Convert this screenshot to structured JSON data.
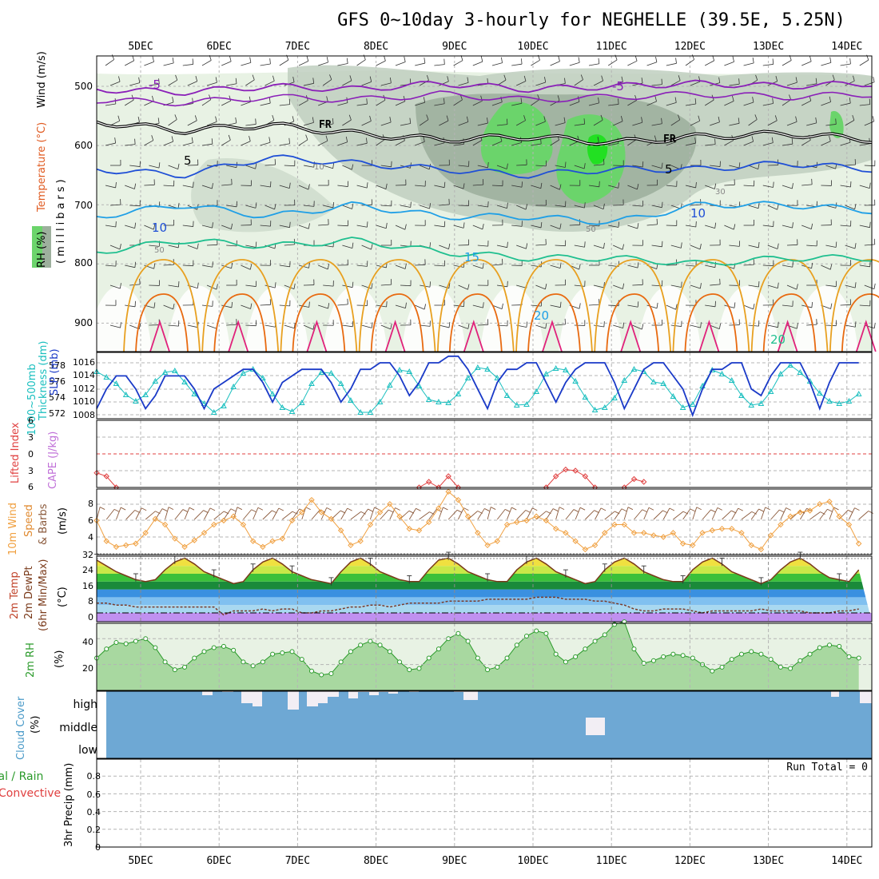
{
  "title": "GFS 0~10day 3-hourly for NEGHELLE (39.5E, 5.25N)",
  "dates": [
    "5DEC",
    "6DEC",
    "7DEC",
    "8DEC",
    "9DEC",
    "10DEC",
    "11DEC",
    "12DEC",
    "13DEC",
    "14DEC"
  ],
  "colors": {
    "grid": "#b4b4b4",
    "rh_light": "#e8f2e4",
    "rh_mid": "#c0cfc0",
    "rh_dark": "#9db09d",
    "rh_green": "#6bd46b",
    "rh_bright": "#22e022",
    "purple": "#8a1fb8",
    "blue": "#1f4fd6",
    "sky": "#1f9fe6",
    "teal": "#1fbf8f",
    "orange": "#e8a020",
    "darkorange": "#e86a10",
    "magenta": "#e0207a",
    "thickness": "#1abfbf",
    "slp": "#1a3ac8",
    "li": "#e04040",
    "wind10": "#f0a040",
    "barb": "#8b5a3c",
    "rh2m": "#2a9a2a",
    "cloud": "#6ea8d4",
    "temp_line": "#7a3a1a"
  },
  "panel_labels": {
    "upper_rh": "RH (%)",
    "upper_temp": "Temperature (°C)",
    "upper_wind": "Wind (m/s)",
    "upper_axis": "(millibars)",
    "thick_a": "Thickness (dm)",
    "thick_b": "1000~500mb",
    "slp": "SLP (mb)",
    "li": "Lifted Index",
    "cape": "CAPE (J/kg)",
    "wind_a": "10m Wind",
    "wind_b": "Speed",
    "wind_c": "& Barbs",
    "wind_unit": "(m/s)",
    "temp_a": "2m Temp",
    "temp_b": "2m DewPt",
    "temp_c": "(6hr Min/Max)",
    "temp_unit": "(°C)",
    "rh_a": "2m RH",
    "rh_unit": "(%)",
    "cloud_a": "Cloud Cover",
    "cloud_unit": "(%)",
    "cloud_high": "high",
    "cloud_middle": "middle",
    "cloud_low": "low",
    "precip_a": "tal / Rain",
    "precip_b": "Convective",
    "precip_c": "3hr Precip (mm)",
    "run_total": "Run Total = 0"
  },
  "contour_labels": {
    "minus5_a": "-5",
    "minus5_b": "-5",
    "fr_a": "FR",
    "fr_b": "FR",
    "five_a": "5",
    "five_b": "5",
    "ten_a": "10",
    "ten_b": "10",
    "fifteen": "15",
    "twenty_a": "20",
    "twenty_b": "20",
    "rh10": "10",
    "rh30": "30",
    "rh50a": "50",
    "rh50b": "50"
  },
  "axes": {
    "pressure_ticks": [
      "500",
      "600",
      "700",
      "800",
      "900"
    ],
    "thickness_ticks": [
      "578",
      "576",
      "574",
      "572"
    ],
    "slp_ticks": [
      "1016",
      "1014",
      "1012",
      "1010",
      "1008"
    ],
    "li_ticks": [
      "6",
      "3",
      "0",
      "3",
      "6"
    ],
    "wind_ticks": [
      "8",
      "6",
      "4"
    ],
    "temp_ticks": [
      "32",
      "24",
      "16",
      "8",
      "0"
    ],
    "rh_ticks": [
      "40",
      "20"
    ],
    "precip_ticks": [
      "0.8",
      "0.6",
      "0.4",
      "0.2",
      "0"
    ]
  },
  "chart_data": [
    {
      "type": "line",
      "panel": "upper-air",
      "title": "GFS 0~10day 3-hourly for NEGHELLE (39.5E, 5.25N)",
      "ylabel": "(millibars)",
      "ylim": [
        1000,
        450
      ],
      "series": [
        {
          "name": "-5",
          "pressure": [
            505,
            510,
            500,
            505,
            495,
            505,
            500,
            495,
            500,
            495
          ]
        },
        {
          "name": "FR",
          "pressure": [
            560,
            575,
            565,
            580,
            590,
            585,
            595,
            585,
            580,
            590
          ]
        },
        {
          "name": "5",
          "pressure": [
            640,
            650,
            620,
            630,
            640,
            650,
            640,
            640,
            630,
            640
          ]
        },
        {
          "name": "10",
          "pressure": [
            720,
            700,
            720,
            700,
            720,
            720,
            730,
            700,
            700,
            710
          ]
        },
        {
          "name": "15",
          "pressure": [
            780,
            760,
            770,
            760,
            780,
            790,
            790,
            800,
            790,
            790
          ]
        }
      ]
    },
    {
      "type": "line",
      "panel": "thickness-slp",
      "ylabel": "Thickness (dm)",
      "ylim": [
        571.5,
        579
      ],
      "x_hours": [
        0,
        3,
        6,
        9,
        12,
        15,
        18,
        21,
        24,
        27,
        30,
        33,
        36,
        39,
        42,
        45,
        48,
        51,
        54,
        57,
        60,
        63,
        66,
        69,
        72,
        75,
        78,
        81,
        84,
        87,
        90,
        93,
        96,
        99,
        102,
        105,
        108,
        111,
        114,
        117,
        120,
        123,
        126,
        129,
        132,
        135,
        138,
        141,
        144,
        147,
        150,
        153,
        156,
        159,
        162,
        165,
        168,
        171,
        174,
        177,
        180,
        183,
        186,
        189,
        192,
        195,
        198,
        201,
        204,
        207,
        210,
        213,
        216,
        219,
        222,
        225,
        228,
        231,
        234
      ],
      "series": [
        {
          "name": "Thickness (dm)",
          "values": [
            577.3,
            576.6,
            575.8,
            574.4,
            573.6,
            574.4,
            576.1,
            577.2,
            577.4,
            576.0,
            574.5,
            573.3,
            572.2,
            573.0,
            575.4,
            577.1,
            577.6,
            576.5,
            574.5,
            572.8,
            572.3,
            573.4,
            575.8,
            577.2,
            577.1,
            575.8,
            573.7,
            572.2,
            572.2,
            573.5,
            575.6,
            577.5,
            577.3,
            575.5,
            573.8,
            573.5,
            573.4,
            574.5,
            576.5,
            577.8,
            577.6,
            576.5,
            574.3,
            573.1,
            573.2,
            574.8,
            577.0,
            577.7,
            577.5,
            576.1,
            574.1,
            572.5,
            572.8,
            574.0,
            576.2,
            577.6,
            577.3,
            576.0,
            575.8,
            574.2,
            572.8,
            573.2,
            575.5,
            577.5,
            577.0,
            576.2,
            574.3,
            573.1,
            573.3,
            574.8,
            577.0,
            578.1,
            577.2,
            576.1,
            574.6,
            573.6,
            573.3,
            573.6,
            574.5
          ]
        },
        {
          "name": "SLP (mb)",
          "values": [
            1009,
            1012,
            1014,
            1014,
            1012,
            1009,
            1011,
            1014,
            1014,
            1014,
            1012,
            1009,
            1012,
            1013,
            1014,
            1015,
            1015,
            1013,
            1010,
            1013,
            1014,
            1015,
            1015,
            1015,
            1013,
            1010,
            1012,
            1015,
            1015,
            1016,
            1016,
            1014,
            1011,
            1013,
            1016,
            1016,
            1017,
            1017,
            1015,
            1012,
            1009,
            1013,
            1015,
            1015,
            1016,
            1016,
            1013,
            1010,
            1013,
            1015,
            1016,
            1016,
            1016,
            1013,
            1009,
            1012,
            1015,
            1016,
            1016,
            1014,
            1012,
            1008,
            1012,
            1015,
            1015,
            1016,
            1016,
            1012,
            1011,
            1014,
            1016,
            1016,
            1016,
            1013,
            1009,
            1013,
            1016,
            1016,
            1016
          ]
        }
      ]
    },
    {
      "type": "line",
      "panel": "lifted-index",
      "ylabel": "Lifted Index",
      "ylim": [
        6,
        -6
      ],
      "series": [
        {
          "name": "Lifted Index",
          "x_hours": [
            0,
            3,
            6,
            99,
            102,
            105,
            108,
            111,
            138,
            141,
            144,
            147,
            150,
            153,
            162,
            165,
            168
          ],
          "values": [
            3.4,
            4.0,
            6.0,
            6.0,
            5.0,
            6.0,
            4.0,
            6.0,
            6.0,
            4.0,
            2.8,
            3.0,
            4.0,
            6.0,
            6.0,
            4.5,
            5.0
          ]
        }
      ]
    },
    {
      "type": "line",
      "panel": "10m-wind",
      "ylabel": "(m/s)",
      "ylim": [
        1.5,
        10
      ],
      "x_hours": [
        0,
        3,
        6,
        9,
        12,
        15,
        18,
        21,
        24,
        27,
        30,
        33,
        36,
        39,
        42,
        45,
        48,
        51,
        54,
        57,
        60,
        63,
        66,
        69,
        72,
        75,
        78,
        81,
        84,
        87,
        90,
        93,
        96,
        99,
        102,
        105,
        108,
        111,
        114,
        117,
        120,
        123,
        126,
        129,
        132,
        135,
        138,
        141,
        144,
        147,
        150,
        153,
        156,
        159,
        162,
        165,
        168,
        171,
        174,
        177,
        180,
        183,
        186,
        189,
        192,
        195,
        198,
        201,
        204,
        207,
        210,
        213,
        216,
        219,
        222,
        225,
        228,
        231,
        234
      ],
      "series": [
        {
          "name": "10m Wind Speed",
          "values": [
            6.0,
            3.5,
            2.8,
            3.0,
            3.2,
            4.5,
            6.2,
            5.5,
            3.8,
            2.8,
            3.6,
            4.5,
            5.5,
            6.0,
            6.5,
            5.5,
            3.5,
            2.8,
            3.5,
            3.8,
            6.0,
            7.0,
            8.5,
            7.0,
            6.2,
            4.8,
            3.0,
            3.5,
            5.5,
            7.0,
            8.0,
            6.5,
            5.0,
            4.8,
            5.8,
            7.5,
            9.5,
            8.5,
            6.5,
            4.5,
            3.0,
            3.5,
            5.5,
            5.8,
            6.0,
            6.5,
            6.0,
            5.0,
            4.5,
            3.5,
            2.5,
            3.0,
            4.5,
            5.5,
            5.5,
            4.5,
            4.5,
            4.2,
            4.0,
            4.5,
            3.2,
            3.0,
            4.5,
            4.8,
            5.0,
            5.0,
            4.5,
            3.0,
            2.5,
            4.2,
            5.5,
            6.5,
            7.0,
            7.2,
            8.0,
            8.3,
            6.5,
            5.5,
            3.2
          ]
        }
      ]
    },
    {
      "type": "area",
      "panel": "2m-temp",
      "ylabel": "(°C)",
      "ylim": [
        -2,
        32
      ],
      "x_hours": [
        0,
        3,
        6,
        9,
        12,
        15,
        18,
        21,
        24,
        27,
        30,
        33,
        36,
        39,
        42,
        45,
        48,
        51,
        54,
        57,
        60,
        63,
        66,
        69,
        72,
        75,
        78,
        81,
        84,
        87,
        90,
        93,
        96,
        99,
        102,
        105,
        108,
        111,
        114,
        117,
        120,
        123,
        126,
        129,
        132,
        135,
        138,
        141,
        144,
        147,
        150,
        153,
        156,
        159,
        162,
        165,
        168,
        171,
        174,
        177,
        180,
        183,
        186,
        189,
        192,
        195,
        198,
        201,
        204,
        207,
        210,
        213,
        216,
        219,
        222,
        225,
        228,
        231,
        234
      ],
      "series": [
        {
          "name": "2m Temp",
          "values": [
            27,
            24,
            21,
            19,
            17,
            16,
            17,
            22,
            26,
            28,
            25,
            21,
            19,
            17,
            15,
            16,
            22,
            26,
            28,
            25,
            21,
            19,
            17,
            16,
            15,
            21,
            26,
            28,
            25,
            21,
            19,
            17,
            16,
            16,
            22,
            27,
            28,
            25,
            21,
            19,
            17,
            16,
            16,
            22,
            26,
            28,
            25,
            21,
            19,
            17,
            15,
            16,
            22,
            26,
            28,
            25,
            21,
            19,
            17,
            16,
            16,
            22,
            26,
            28,
            25,
            21,
            19,
            17,
            15,
            17,
            22,
            26,
            28,
            25,
            21,
            18,
            17,
            16,
            22
          ]
        },
        {
          "name": "2m DewPt",
          "values": [
            5,
            5,
            4,
            4,
            3,
            3,
            3,
            3,
            3,
            3,
            3,
            3,
            3,
            -1,
            1,
            1,
            1,
            2,
            1,
            2,
            2,
            0,
            0,
            1,
            1,
            2,
            3,
            3,
            4,
            4,
            3,
            4,
            5,
            5,
            5,
            5,
            6,
            6,
            6,
            6,
            7,
            7,
            7,
            7,
            7,
            8,
            8,
            8,
            7,
            7,
            7,
            6,
            6,
            5,
            4,
            2,
            1,
            1,
            2,
            2,
            2,
            1,
            0,
            1,
            1,
            1,
            1,
            1,
            2,
            1,
            1,
            1,
            1,
            0,
            0,
            0,
            1,
            1,
            2
          ]
        }
      ]
    },
    {
      "type": "area",
      "panel": "2m-rh",
      "ylabel": "(%)",
      "ylim": [
        0,
        55
      ],
      "x_hours": [
        0,
        3,
        6,
        9,
        12,
        15,
        18,
        21,
        24,
        27,
        30,
        33,
        36,
        39,
        42,
        45,
        48,
        51,
        54,
        57,
        60,
        63,
        66,
        69,
        72,
        75,
        78,
        81,
        84,
        87,
        90,
        93,
        96,
        99,
        102,
        105,
        108,
        111,
        114,
        117,
        120,
        123,
        126,
        129,
        132,
        135,
        138,
        141,
        144,
        147,
        150,
        153,
        156,
        159,
        162,
        165,
        168,
        171,
        174,
        177,
        180,
        183,
        186,
        189,
        192,
        195,
        198,
        201,
        204,
        207,
        210,
        213,
        216,
        219,
        222,
        225,
        228,
        231,
        234
      ],
      "series": [
        {
          "name": "2m RH",
          "values": [
            25,
            32,
            37,
            36,
            38,
            40,
            33,
            22,
            16,
            18,
            25,
            30,
            33,
            34,
            31,
            22,
            19,
            22,
            28,
            29,
            30,
            24,
            15,
            12,
            13,
            22,
            30,
            35,
            38,
            35,
            30,
            22,
            16,
            17,
            25,
            32,
            40,
            44,
            38,
            25,
            16,
            18,
            25,
            35,
            42,
            46,
            44,
            28,
            22,
            26,
            32,
            38,
            43,
            51,
            53,
            32,
            21,
            23,
            26,
            28,
            27,
            25,
            20,
            15,
            18,
            24,
            28,
            30,
            28,
            24,
            18,
            17,
            23,
            28,
            33,
            35,
            34,
            26,
            25
          ]
        }
      ]
    },
    {
      "type": "bar",
      "panel": "cloud-cover",
      "ylabel": "(%)",
      "categories": [
        "high",
        "middle",
        "low"
      ],
      "ylim": [
        0,
        100
      ]
    },
    {
      "type": "bar",
      "panel": "3hr-precip",
      "ylabel": "3hr Precip (mm)",
      "ylim": [
        0,
        0.9
      ],
      "annotations": [
        "Run Total = 0"
      ],
      "values": []
    }
  ]
}
